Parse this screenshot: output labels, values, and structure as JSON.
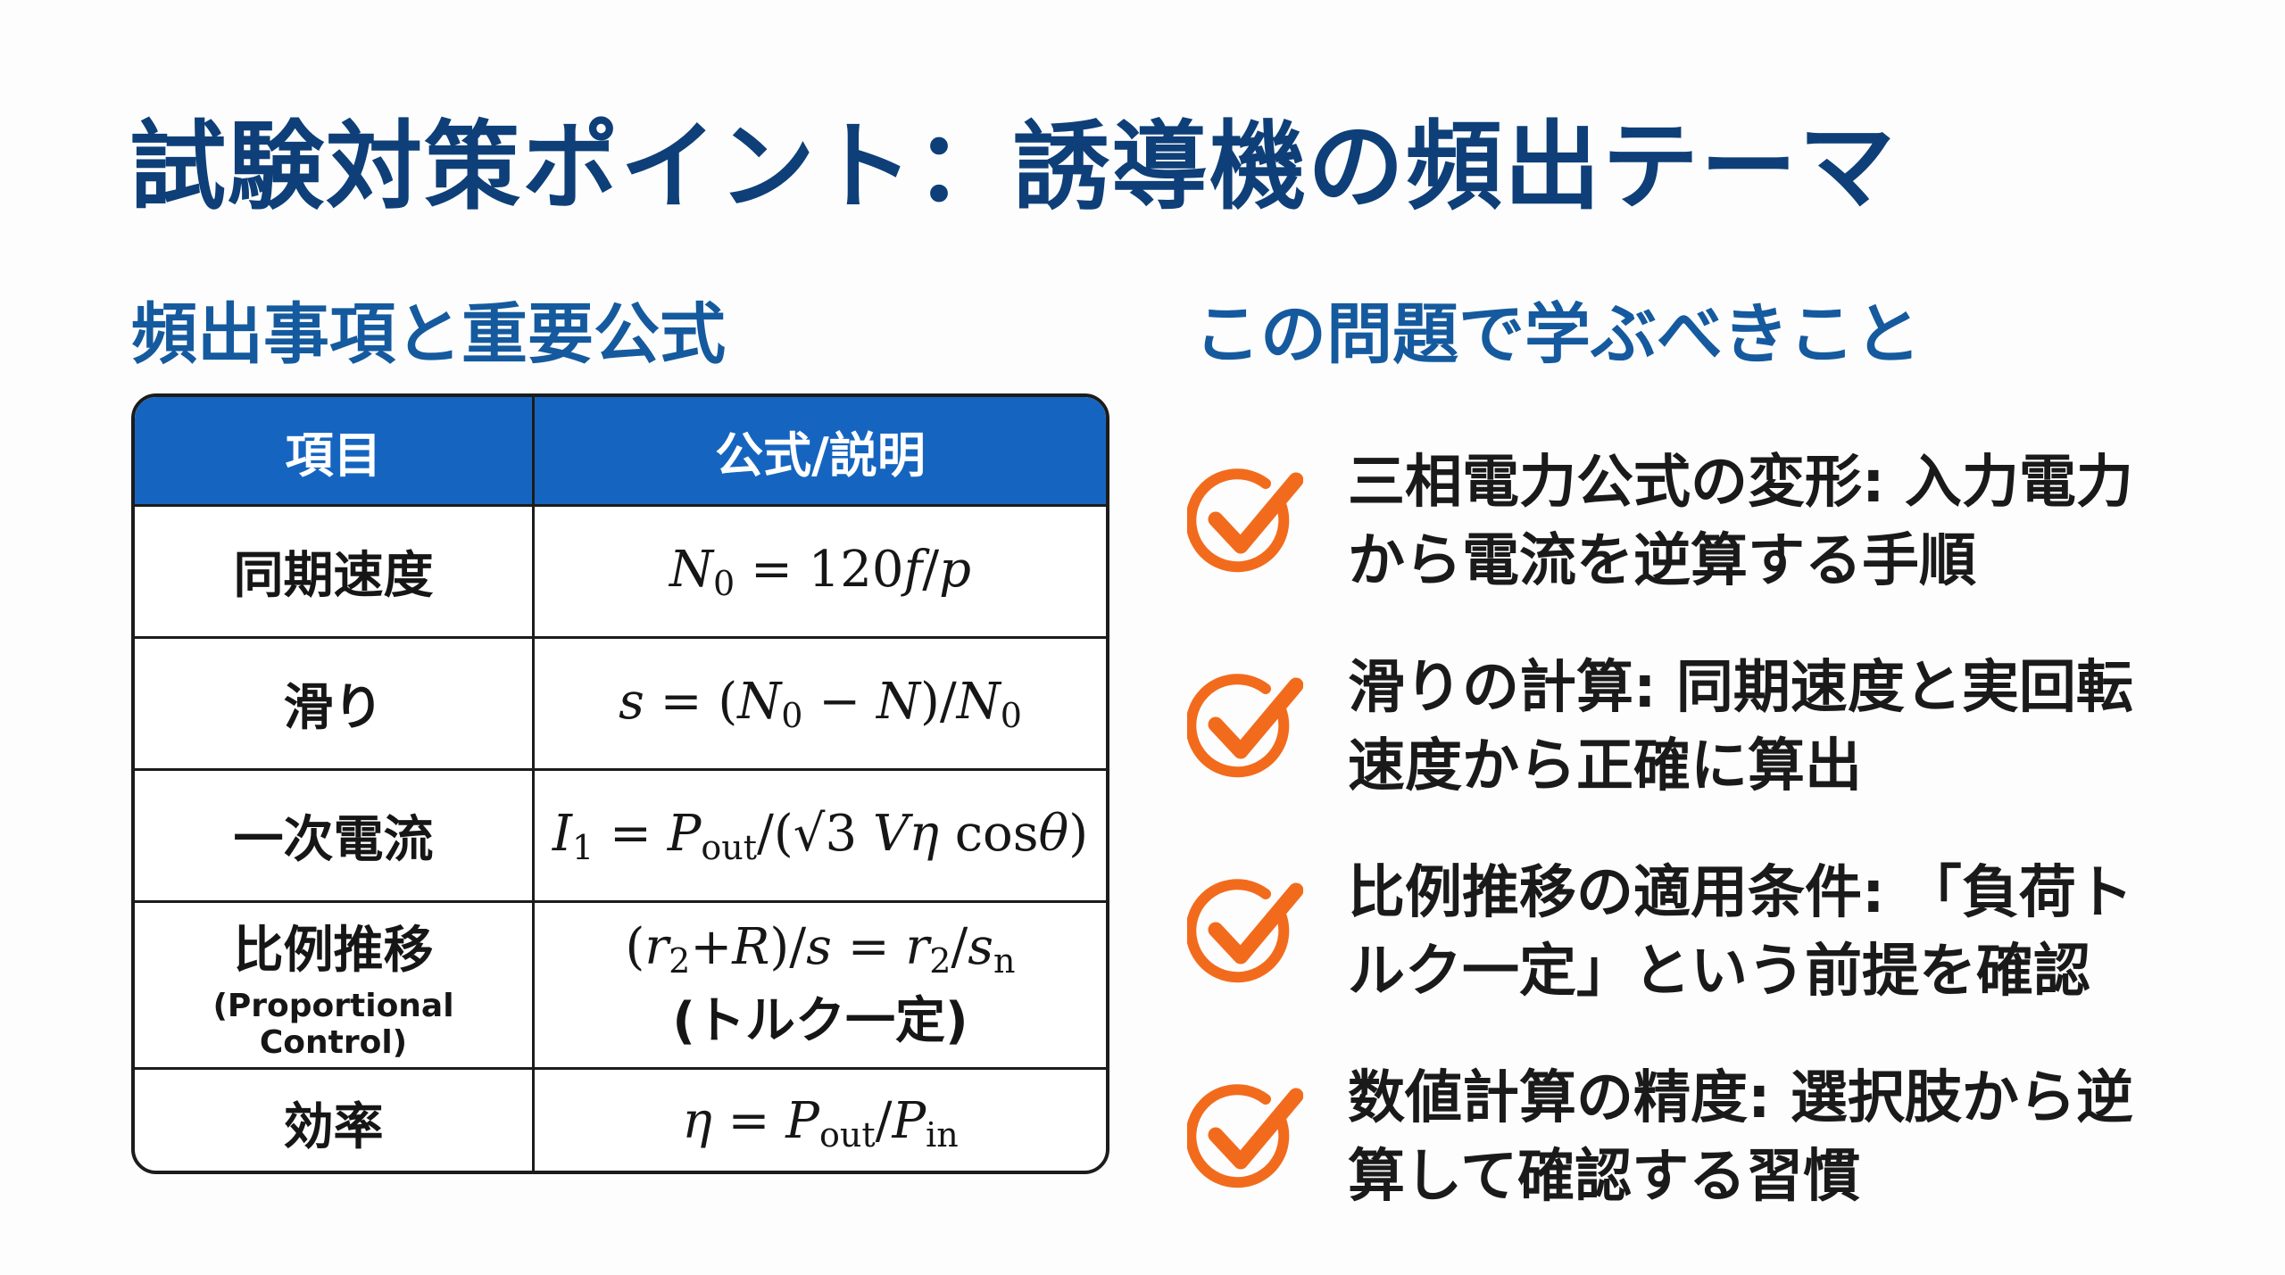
{
  "title": "試験対策ポイント：誘導機の頻出テーマ",
  "left_heading": "頻出事項と重要公式",
  "right_heading": "この問題で学ぶべきこと",
  "colors": {
    "title": "#0e3f78",
    "heading": "#155a9e",
    "table_header": "#1565c0",
    "check": "#f26b1d"
  },
  "table": {
    "headers": [
      "項目",
      "公式/説明"
    ],
    "rows": [
      {
        "item": "同期速度",
        "formula": [
          [
            "i",
            "N"
          ],
          [
            "sub",
            "0"
          ],
          [
            "t",
            " = 120"
          ],
          [
            "i",
            "f"
          ],
          [
            "t",
            "/"
          ],
          [
            "i",
            "p"
          ]
        ]
      },
      {
        "item": "滑り",
        "formula": [
          [
            "i",
            "s"
          ],
          [
            "t",
            " = ("
          ],
          [
            "i",
            "N"
          ],
          [
            "sub",
            "0"
          ],
          [
            "t",
            " − "
          ],
          [
            "i",
            "N"
          ],
          [
            "t",
            ")/"
          ],
          [
            "i",
            "N"
          ],
          [
            "sub",
            "0"
          ]
        ]
      },
      {
        "item": "一次電流",
        "formula": [
          [
            "i",
            "I"
          ],
          [
            "sub",
            "1"
          ],
          [
            "t",
            " = "
          ],
          [
            "i",
            "P"
          ],
          [
            "sub",
            "out"
          ],
          [
            "t",
            "/(√3 "
          ],
          [
            "i",
            "V"
          ],
          [
            "i",
            "η"
          ],
          [
            "t",
            " cos"
          ],
          [
            "i",
            "θ"
          ],
          [
            "t",
            ")"
          ]
        ]
      },
      {
        "item": "比例推移",
        "item_sub": "(Proportional Control)",
        "formula": [
          [
            "t",
            "("
          ],
          [
            "i",
            "r"
          ],
          [
            "sub",
            "2"
          ],
          [
            "t",
            "+"
          ],
          [
            "i",
            "R"
          ],
          [
            "t",
            ")/"
          ],
          [
            "i",
            "s"
          ],
          [
            "t",
            " = "
          ],
          [
            "i",
            "r"
          ],
          [
            "sub",
            "2"
          ],
          [
            "t",
            "/"
          ],
          [
            "i",
            "s"
          ],
          [
            "sub",
            "n"
          ]
        ],
        "note": "(トルク一定)"
      },
      {
        "item": "効率",
        "formula": [
          [
            "i",
            "η"
          ],
          [
            "t",
            " = "
          ],
          [
            "i",
            "P"
          ],
          [
            "sub",
            "out"
          ],
          [
            "t",
            "/"
          ],
          [
            "i",
            "P"
          ],
          [
            "sub",
            "in"
          ]
        ]
      }
    ]
  },
  "points": [
    {
      "icon": "check-circle-icon",
      "text": "三相電力公式の変形: 入力電力から電流を逆算する手順"
    },
    {
      "icon": "check-circle-icon",
      "text": "滑りの計算: 同期速度と実回転速度から正確に算出"
    },
    {
      "icon": "check-circle-icon",
      "text": "比例推移の適用条件: 「負荷トルク一定」という前提を確認"
    },
    {
      "icon": "check-circle-icon",
      "text": "数値計算の精度: 選択肢から逆算して確認する習慣"
    }
  ]
}
